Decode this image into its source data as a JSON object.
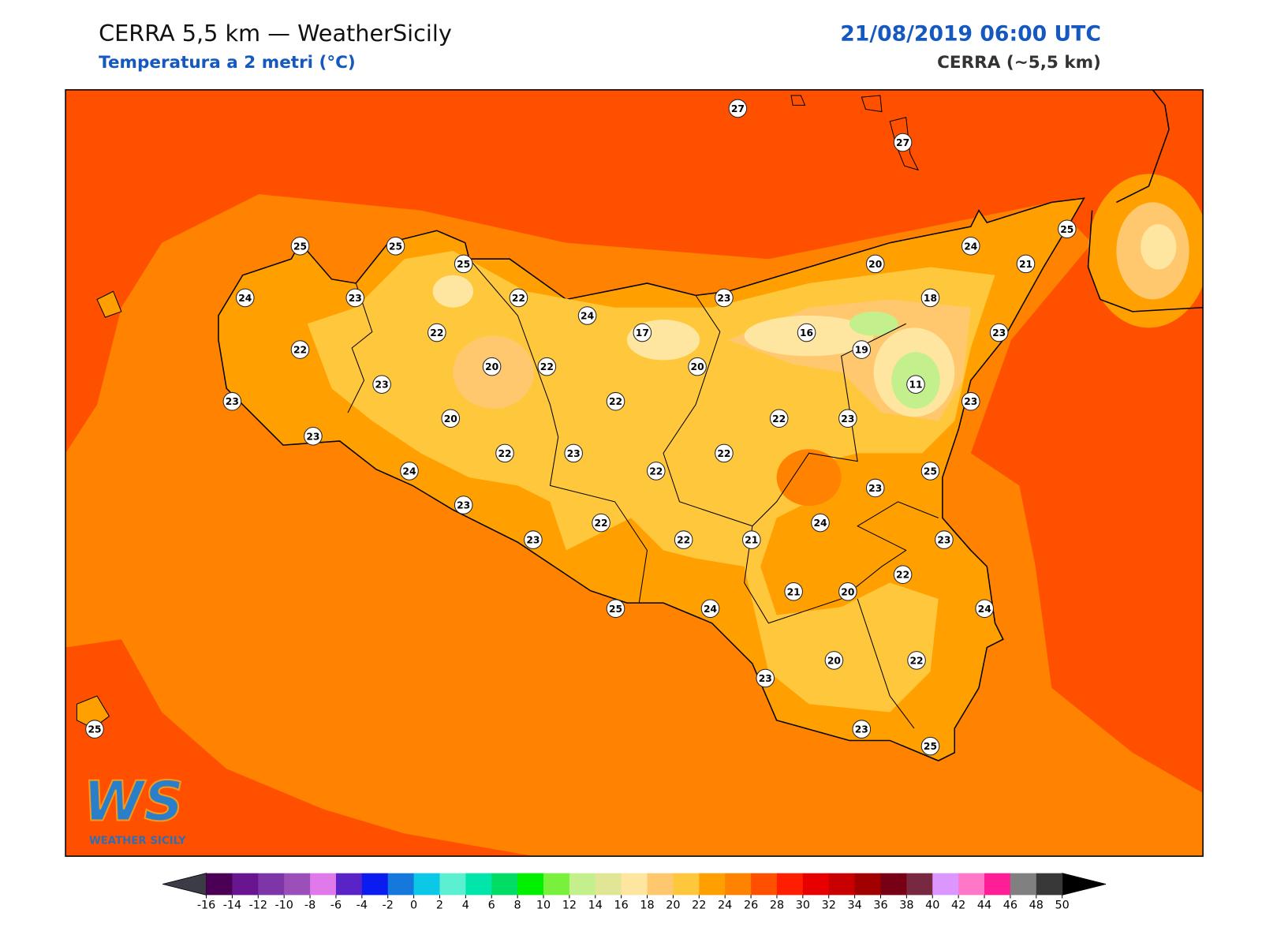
{
  "header": {
    "title": "CERRA 5,5 km — WeatherSicily",
    "subtitle": "Temperatura a 2 metri (°C)",
    "datetime": "21/08/2019 06:00 UTC",
    "model": "CERRA (~5,5 km)"
  },
  "stations": [
    27,
    27,
    25,
    25,
    25,
    25,
    24,
    20,
    21,
    24,
    23,
    22,
    23,
    18,
    24,
    22,
    17,
    16,
    23,
    22,
    19,
    20,
    22,
    20,
    23,
    11,
    23,
    22,
    23,
    20,
    22,
    23,
    23,
    22,
    23,
    22,
    24,
    22,
    25,
    23,
    23,
    22,
    24,
    23,
    22,
    21,
    23,
    22,
    21,
    20,
    25,
    24,
    24,
    20,
    22,
    23,
    25,
    23,
    25
  ],
  "colorbar": {
    "ticks": [
      -16,
      -14,
      -12,
      -10,
      -8,
      -6,
      -4,
      -2,
      0,
      2,
      4,
      6,
      8,
      10,
      12,
      14,
      16,
      18,
      20,
      22,
      24,
      26,
      28,
      30,
      32,
      34,
      36,
      38,
      40,
      42,
      44,
      46,
      48,
      50
    ],
    "colors": [
      "#4b0055",
      "#6a1590",
      "#7e35a8",
      "#9b4fb8",
      "#e079ea",
      "#5a23c8",
      "#0a1cf0",
      "#1478dc",
      "#0ac8e6",
      "#5cf0d2",
      "#00e6aa",
      "#00dc64",
      "#00f000",
      "#78f03c",
      "#c3f08c",
      "#e1e696",
      "#ffe6a0",
      "#ffc86e",
      "#ffc83c",
      "#ffa000",
      "#ff8200",
      "#ff5000",
      "#ff1e00",
      "#e60000",
      "#c80000",
      "#a00000",
      "#780014",
      "#782840",
      "#dc96ff",
      "#ff78c8",
      "#ff1e96",
      "#808080",
      "#383838"
    ],
    "under_color": "#3c3c46",
    "over_color": "#000000"
  },
  "logo": {
    "text": "WS",
    "subtext": "Weather Sicily"
  }
}
